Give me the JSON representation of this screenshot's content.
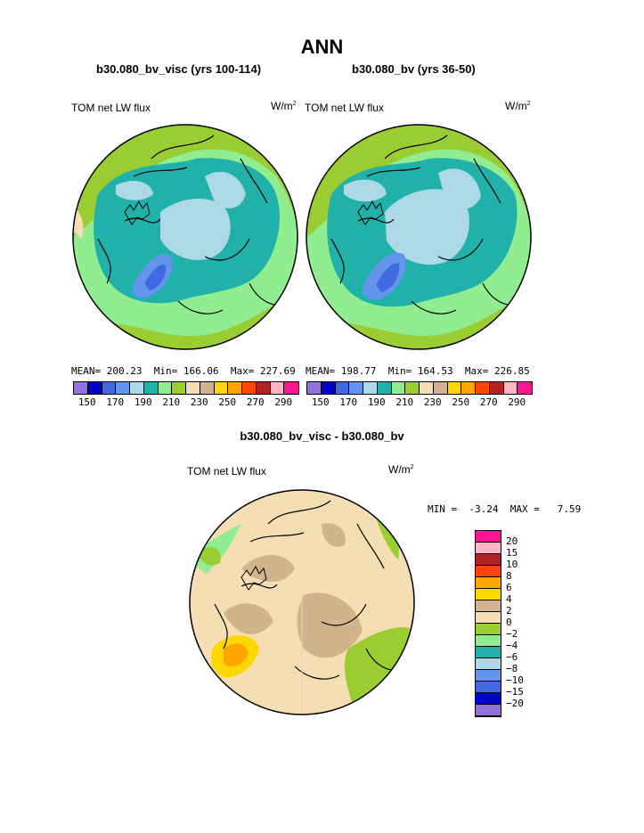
{
  "title": "ANN",
  "panels": [
    {
      "subtitle": "b30.080_bv_visc (yrs 100-114)",
      "field_label": "TOM net LW flux",
      "units": "W/m",
      "units_sup": "2",
      "stats": {
        "mean_label": "MEAN=",
        "mean": "200.23",
        "min_label": "Min=",
        "min": "166.06",
        "max_label": "Max=",
        "max": "227.69"
      }
    },
    {
      "subtitle": "b30.080_bv (yrs 36-50)",
      "field_label": "TOM net LW flux",
      "units": "W/m",
      "units_sup": "2",
      "stats": {
        "mean_label": "MEAN=",
        "mean": "198.77",
        "min_label": "Min=",
        "min": "164.53",
        "max_label": "Max=",
        "max": "226.85"
      }
    }
  ],
  "colorbar_top": {
    "colors": [
      "#9370db",
      "#0000cd",
      "#4169e1",
      "#6495ed",
      "#add8e6",
      "#20b2aa",
      "#90ee90",
      "#9acd32",
      "#f5deb3",
      "#d2b48c",
      "#ffd700",
      "#ffa500",
      "#ff4500",
      "#b22222",
      "#ffb6c1",
      "#ff1493"
    ],
    "tick_labels": [
      "150",
      "170",
      "190",
      "210",
      "230",
      "250",
      "270",
      "290"
    ]
  },
  "diff": {
    "subtitle": "b30.080_bv_visc - b30.080_bv",
    "field_label": "TOM net LW flux",
    "units": "W/m",
    "units_sup": "2",
    "min_label": "MIN =",
    "min": "-3.24",
    "max_label": "MAX =",
    "max": "7.59",
    "colorbar": {
      "colors": [
        "#ff1493",
        "#ffb6c1",
        "#b22222",
        "#ff4500",
        "#ffa500",
        "#ffd700",
        "#d2b48c",
        "#f5deb3",
        "#9acd32",
        "#90ee90",
        "#20b2aa",
        "#add8e6",
        "#6495ed",
        "#4169e1",
        "#0000cd",
        "#9370db"
      ],
      "tick_labels": [
        "20",
        "15",
        "10",
        "8",
        "6",
        "4",
        "2",
        "0",
        "−2",
        "−4",
        "−6",
        "−8",
        "−10",
        "−15",
        "−20"
      ]
    }
  }
}
